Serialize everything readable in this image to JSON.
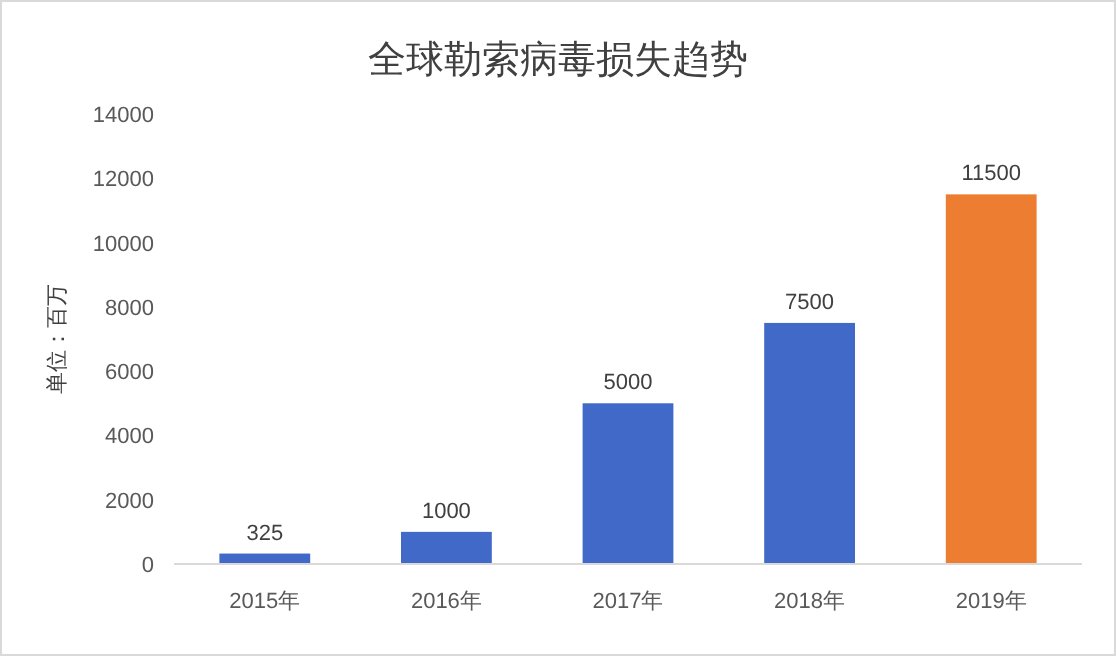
{
  "chart_data": {
    "type": "bar",
    "title": "全球勒索病毒损失趋势",
    "ylabel": "单位：百万",
    "categories": [
      "2015年",
      "2016年",
      "2017年",
      "2018年",
      "2019年"
    ],
    "values": [
      325,
      1000,
      5000,
      7500,
      11500
    ],
    "colors": [
      "#4169c8",
      "#4169c8",
      "#4169c8",
      "#4169c8",
      "#ed7d31"
    ],
    "ylim": [
      0,
      14000
    ],
    "yticks": [
      0,
      2000,
      4000,
      6000,
      8000,
      10000,
      12000,
      14000
    ],
    "data_labels": true
  }
}
